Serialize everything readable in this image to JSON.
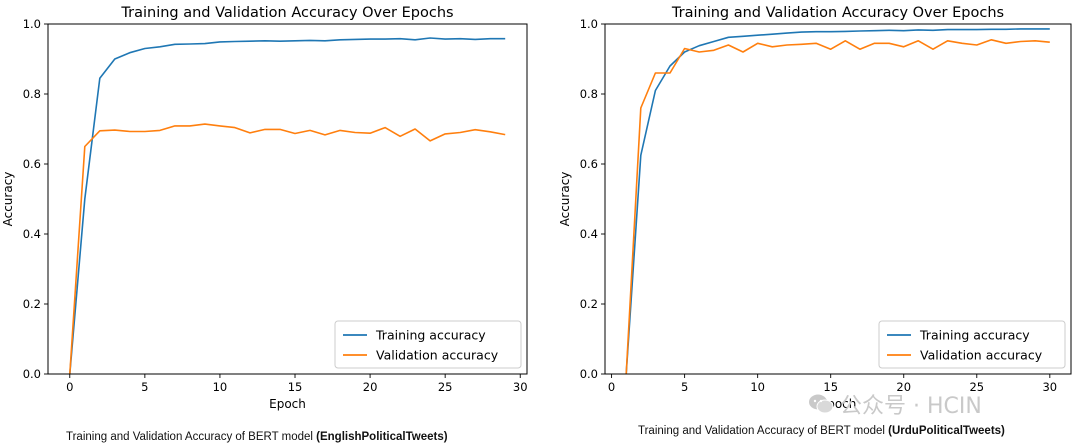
{
  "chart_data": [
    {
      "type": "line",
      "title": "Training and Validation Accuracy Over Epochs",
      "xlabel": "Epoch",
      "ylabel": "Accuracy",
      "xlim": [
        -1.45,
        30.45
      ],
      "ylim": [
        0.0,
        1.0
      ],
      "xticks": [
        0,
        5,
        10,
        15,
        20,
        25,
        30
      ],
      "yticks": [
        0.0,
        0.2,
        0.4,
        0.6,
        0.8,
        1.0
      ],
      "legend_position": "lower-right",
      "series": [
        {
          "name": "Training accuracy",
          "color": "#1f77b4",
          "x": [
            0,
            1,
            2,
            3,
            4,
            5,
            6,
            7,
            8,
            9,
            10,
            11,
            12,
            13,
            14,
            15,
            16,
            17,
            18,
            19,
            20,
            21,
            22,
            23,
            24,
            25,
            26,
            27,
            28,
            29
          ],
          "y": [
            0.0,
            0.5,
            0.845,
            0.9,
            0.918,
            0.93,
            0.935,
            0.942,
            0.943,
            0.944,
            0.949,
            0.95,
            0.951,
            0.952,
            0.951,
            0.952,
            0.953,
            0.952,
            0.955,
            0.956,
            0.957,
            0.957,
            0.958,
            0.955,
            0.96,
            0.957,
            0.958,
            0.956,
            0.958,
            0.958
          ]
        },
        {
          "name": "Validation accuracy",
          "color": "#ff7f0e",
          "x": [
            0,
            1,
            2,
            3,
            4,
            5,
            6,
            7,
            8,
            9,
            10,
            11,
            12,
            13,
            14,
            15,
            16,
            17,
            18,
            19,
            20,
            21,
            22,
            23,
            24,
            25,
            26,
            27,
            28,
            29
          ],
          "y": [
            0.0,
            0.65,
            0.695,
            0.697,
            0.693,
            0.693,
            0.696,
            0.709,
            0.709,
            0.714,
            0.709,
            0.704,
            0.689,
            0.699,
            0.699,
            0.687,
            0.696,
            0.683,
            0.696,
            0.69,
            0.688,
            0.704,
            0.679,
            0.7,
            0.666,
            0.686,
            0.69,
            0.698,
            0.692,
            0.684
          ]
        }
      ]
    },
    {
      "type": "line",
      "title": "Training and Validation Accuracy Over Epochs",
      "xlabel": "Epoch",
      "ylabel": "Accuracy",
      "xlim": [
        -0.45,
        31.45
      ],
      "ylim": [
        0.0,
        1.0
      ],
      "xticks": [
        0,
        5,
        10,
        15,
        20,
        25,
        30
      ],
      "yticks": [
        0.0,
        0.2,
        0.4,
        0.6,
        0.8,
        1.0
      ],
      "legend_position": "lower-right",
      "series": [
        {
          "name": "Training accuracy",
          "color": "#1f77b4",
          "x": [
            1,
            2,
            3,
            4,
            5,
            6,
            7,
            8,
            9,
            10,
            11,
            12,
            13,
            14,
            15,
            16,
            17,
            18,
            19,
            20,
            21,
            22,
            23,
            24,
            25,
            26,
            27,
            28,
            29,
            30
          ],
          "y": [
            0.0,
            0.625,
            0.81,
            0.88,
            0.92,
            0.938,
            0.95,
            0.962,
            0.965,
            0.968,
            0.971,
            0.974,
            0.977,
            0.978,
            0.978,
            0.979,
            0.98,
            0.981,
            0.982,
            0.981,
            0.983,
            0.982,
            0.984,
            0.984,
            0.984,
            0.985,
            0.985,
            0.986,
            0.986,
            0.986
          ]
        },
        {
          "name": "Validation accuracy",
          "color": "#ff7f0e",
          "x": [
            1,
            2,
            3,
            4,
            5,
            6,
            7,
            8,
            9,
            10,
            11,
            12,
            13,
            14,
            15,
            16,
            17,
            18,
            19,
            20,
            21,
            22,
            23,
            24,
            25,
            26,
            27,
            28,
            29,
            30
          ],
          "y": [
            0.0,
            0.76,
            0.86,
            0.86,
            0.93,
            0.92,
            0.925,
            0.94,
            0.92,
            0.945,
            0.935,
            0.94,
            0.942,
            0.945,
            0.928,
            0.952,
            0.928,
            0.945,
            0.945,
            0.935,
            0.952,
            0.928,
            0.952,
            0.945,
            0.94,
            0.955,
            0.945,
            0.95,
            0.952,
            0.948
          ]
        }
      ]
    }
  ],
  "captions": {
    "left_prefix": "Training and Validation Accuracy of BERT model ",
    "left_bold": "(EnglishPoliticalTweets)",
    "right_prefix": "Training and Validation Accuracy of BERT model ",
    "right_bold": "(UrduPoliticalTweets)"
  },
  "watermark": {
    "text": "公众号 · HCIN"
  }
}
